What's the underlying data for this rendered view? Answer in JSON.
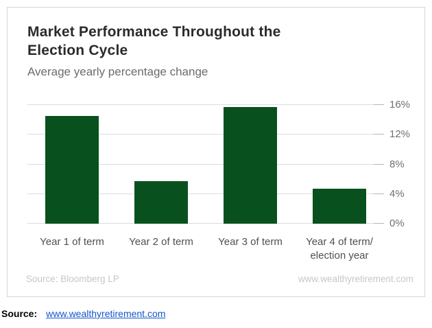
{
  "card": {
    "title_lines": [
      "Market Performance Throughout the",
      "Election Cycle"
    ],
    "subtitle": "Average yearly percentage change",
    "footer_left": "Source: Bloomberg LP",
    "footer_right": "www.wealthyretirement.com"
  },
  "below_card": {
    "source_label": "Source:",
    "source_link": "www.wealthyretirement.com"
  },
  "chart_data": {
    "type": "bar",
    "title": "Market Performance Throughout the Election Cycle",
    "subtitle": "Average yearly percentage change",
    "categories": [
      "Year 1 of term",
      "Year 2 of term",
      "Year 3 of term",
      "Year 4 of term/election year"
    ],
    "values": [
      14.5,
      5.7,
      15.7,
      4.7
    ],
    "unit": "%",
    "xlabel": "",
    "ylabel": "",
    "ylim": [
      0,
      16.6
    ],
    "yticks": [
      0,
      4,
      8,
      12,
      16
    ],
    "ytick_labels": [
      "0%",
      "4%",
      "8%",
      "12%",
      "16%"
    ],
    "ytick_side": "right",
    "grid": true,
    "legend": false,
    "bar_color": "#08511f",
    "source": "Source: Bloomberg LP",
    "watermark": "www.wealthyretirement.com"
  }
}
